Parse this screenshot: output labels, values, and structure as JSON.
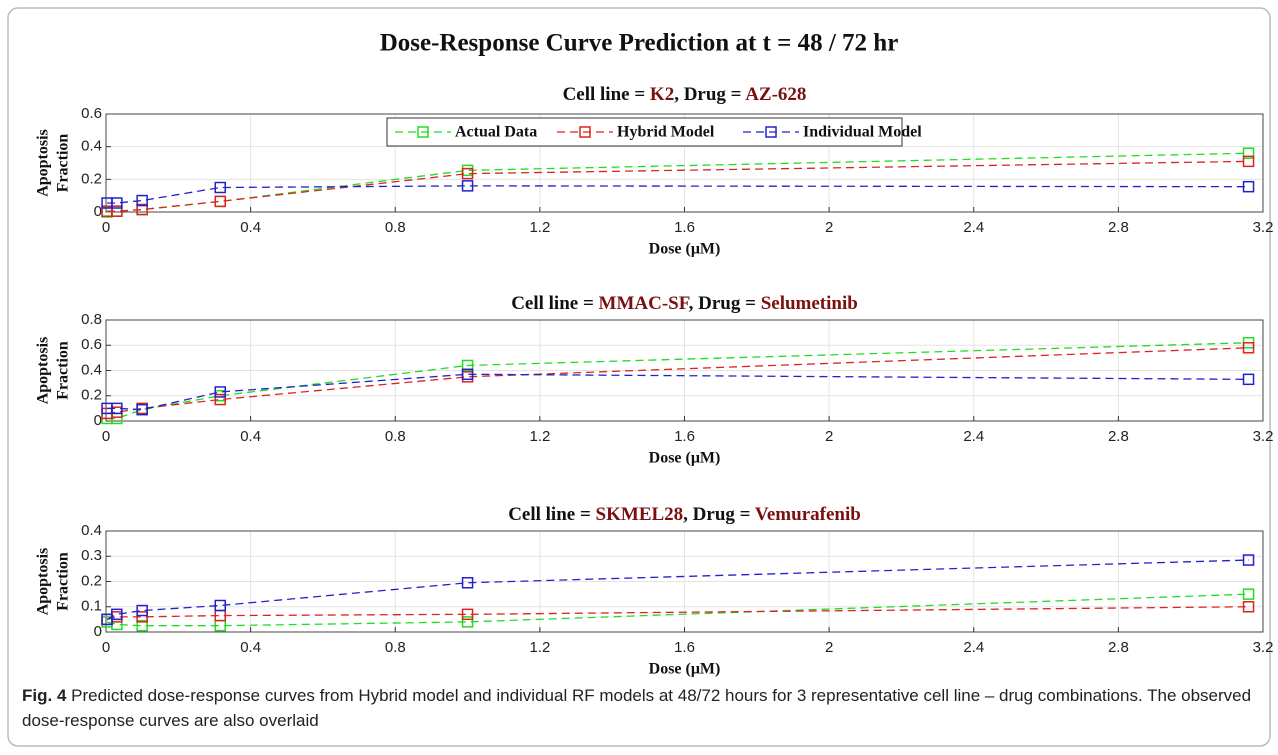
{
  "title": "Dose-Response Curve Prediction at t = 48 / 72 hr",
  "chart_data": [
    {
      "type": "line",
      "title_parts": [
        "Cell line = ",
        "K2",
        ", Drug = ",
        "AZ-628"
      ],
      "xlabel": "Dose (μM)",
      "ylabel": [
        "Apoptosis",
        "Fraction"
      ],
      "x": [
        0.003,
        0.03,
        0.1,
        0.316,
        1,
        3.16
      ],
      "xlim": [
        0,
        3.2
      ],
      "xticks": [
        0,
        0.4,
        0.8,
        1.2,
        1.6,
        2,
        2.4,
        2.8,
        3.2
      ],
      "ylim": [
        0,
        0.6
      ],
      "yticks": [
        0,
        0.2,
        0.4,
        0.6
      ],
      "grid": true,
      "legend": "upper center",
      "series": [
        {
          "name": "Actual Data",
          "color": "#22dd22",
          "values": [
            0.0,
            0.005,
            0.015,
            0.065,
            0.255,
            0.36
          ]
        },
        {
          "name": "Hybrid Model",
          "color": "#dd2222",
          "values": [
            0.005,
            0.005,
            0.015,
            0.065,
            0.235,
            0.31
          ]
        },
        {
          "name": "Individual Model",
          "color": "#2222cc",
          "values": [
            0.055,
            0.055,
            0.07,
            0.15,
            0.16,
            0.155
          ]
        }
      ]
    },
    {
      "type": "line",
      "title_parts": [
        "Cell line = ",
        "MMAC-SF",
        ", Drug = ",
        "Selumetinib"
      ],
      "xlabel": "Dose (μM)",
      "ylabel": [
        "Apoptosis",
        "Fraction"
      ],
      "x": [
        0.003,
        0.03,
        0.1,
        0.316,
        1,
        3.16
      ],
      "xlim": [
        0,
        3.2
      ],
      "xticks": [
        0,
        0.4,
        0.8,
        1.2,
        1.6,
        2,
        2.4,
        2.8,
        3.2
      ],
      "ylim": [
        0,
        0.8
      ],
      "yticks": [
        0,
        0.2,
        0.4,
        0.6,
        0.8
      ],
      "grid": true,
      "series": [
        {
          "color": "#22dd22",
          "values": [
            0.02,
            0.02,
            0.09,
            0.2,
            0.44,
            0.62
          ]
        },
        {
          "color": "#dd2222",
          "values": [
            0.06,
            0.07,
            0.1,
            0.17,
            0.35,
            0.58
          ]
        },
        {
          "color": "#2222cc",
          "values": [
            0.1,
            0.1,
            0.09,
            0.23,
            0.37,
            0.33
          ]
        }
      ]
    },
    {
      "type": "line",
      "title_parts": [
        "Cell line = ",
        "SKMEL28",
        ", Drug = ",
        "Vemurafenib"
      ],
      "xlabel": "Dose (μM)",
      "ylabel": [
        "Apoptosis",
        "Fraction"
      ],
      "x": [
        0.003,
        0.03,
        0.1,
        0.316,
        1,
        3.16
      ],
      "xlim": [
        0,
        3.2
      ],
      "xticks": [
        0,
        0.4,
        0.8,
        1.2,
        1.6,
        2,
        2.4,
        2.8,
        3.2
      ],
      "ylim": [
        0,
        0.4
      ],
      "yticks": [
        0,
        0.1,
        0.2,
        0.3,
        0.4
      ],
      "grid": true,
      "series": [
        {
          "color": "#22dd22",
          "values": [
            0.04,
            0.03,
            0.025,
            0.025,
            0.04,
            0.15
          ]
        },
        {
          "color": "#dd2222",
          "values": [
            0.05,
            0.06,
            0.06,
            0.065,
            0.07,
            0.1
          ]
        },
        {
          "color": "#2222cc",
          "values": [
            0.05,
            0.07,
            0.085,
            0.105,
            0.195,
            0.285
          ]
        }
      ]
    }
  ],
  "caption": {
    "label": "Fig. 4",
    "text": "Predicted dose-response curves from Hybrid model and individual RF models at 48/72 hours for 3 representative cell line – drug combinations. The observed dose-response curves are also overlaid"
  }
}
